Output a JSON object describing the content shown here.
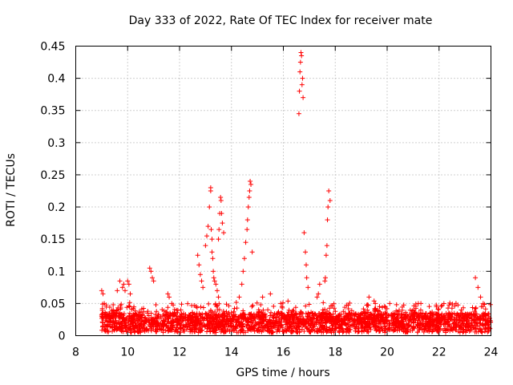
{
  "chart_data": {
    "type": "scatter",
    "title": "Day 333 of 2022, Rate Of TEC Index for receiver mate",
    "xlabel": "GPS time / hours",
    "ylabel": "ROTI / TECUs",
    "xlim": [
      8,
      24
    ],
    "ylim": [
      0,
      0.45
    ],
    "grid": true,
    "marker": "+",
    "series_color": "#ff0000",
    "x_ticks": [
      "8",
      "10",
      "12",
      "14",
      "16",
      "18",
      "20",
      "22",
      "24"
    ],
    "y_ticks": [
      "0",
      "0.05",
      "0.1",
      "0.15",
      "0.2",
      "0.25",
      "0.3",
      "0.35",
      "0.4",
      "0.45"
    ],
    "series": [
      {
        "name": "ROTI",
        "x": [
          9.0,
          9.05,
          9.1,
          9.6,
          9.7,
          9.8,
          9.85,
          9.9,
          10.0,
          10.05,
          10.1,
          10.85,
          10.9,
          10.95,
          11.0,
          11.55,
          11.6,
          11.7,
          12.05,
          12.5,
          12.7,
          12.75,
          12.8,
          12.85,
          12.9,
          13.0,
          13.05,
          13.1,
          13.15,
          13.2,
          13.2,
          13.22,
          13.25,
          13.25,
          13.28,
          13.3,
          13.32,
          13.35,
          13.4,
          13.45,
          13.5,
          13.5,
          13.52,
          13.55,
          13.58,
          13.6,
          13.62,
          13.65,
          13.7,
          14.3,
          14.4,
          14.45,
          14.5,
          14.55,
          14.6,
          14.62,
          14.65,
          14.68,
          14.7,
          14.72,
          14.75,
          14.8,
          15.2,
          15.5,
          15.9,
          15.95,
          16.6,
          16.62,
          16.64,
          16.66,
          16.68,
          16.7,
          16.72,
          16.74,
          16.76,
          16.8,
          16.85,
          16.88,
          16.9,
          16.95,
          17.3,
          17.35,
          17.4,
          17.6,
          17.62,
          17.65,
          17.68,
          17.7,
          17.72,
          17.75,
          17.8,
          19.3,
          20.1,
          21.2,
          21.3,
          21.9,
          23.4,
          23.5,
          23.6,
          23.7
        ],
        "y": [
          0.07,
          0.065,
          0.05,
          0.07,
          0.085,
          0.075,
          0.08,
          0.07,
          0.085,
          0.08,
          0.065,
          0.105,
          0.1,
          0.09,
          0.085,
          0.065,
          0.06,
          0.05,
          0.04,
          0.035,
          0.125,
          0.11,
          0.095,
          0.085,
          0.075,
          0.14,
          0.155,
          0.17,
          0.2,
          0.23,
          0.225,
          0.165,
          0.15,
          0.13,
          0.12,
          0.1,
          0.09,
          0.085,
          0.08,
          0.07,
          0.06,
          0.15,
          0.165,
          0.19,
          0.215,
          0.21,
          0.19,
          0.175,
          0.16,
          0.06,
          0.08,
          0.1,
          0.12,
          0.145,
          0.165,
          0.18,
          0.2,
          0.215,
          0.225,
          0.24,
          0.235,
          0.13,
          0.06,
          0.065,
          0.05,
          0.045,
          0.345,
          0.38,
          0.41,
          0.425,
          0.44,
          0.435,
          0.39,
          0.4,
          0.37,
          0.16,
          0.13,
          0.11,
          0.09,
          0.075,
          0.06,
          0.065,
          0.08,
          0.085,
          0.09,
          0.125,
          0.14,
          0.18,
          0.2,
          0.225,
          0.21,
          0.06,
          0.05,
          0.05,
          0.05,
          0.045,
          0.09,
          0.075,
          0.06,
          0.05
        ]
      }
    ]
  }
}
